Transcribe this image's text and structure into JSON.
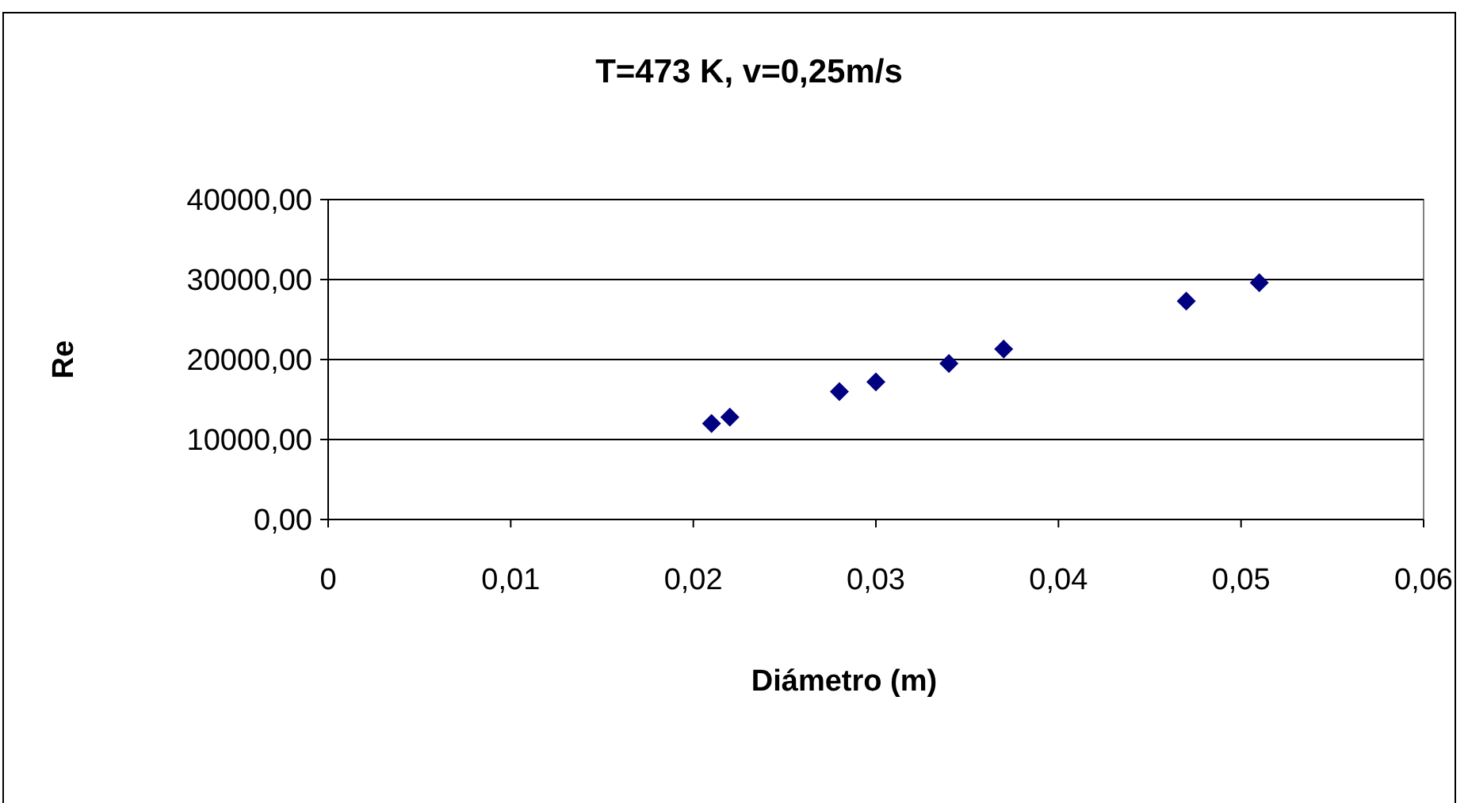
{
  "chart_data": {
    "type": "scatter",
    "title": "T=473 K, v=0,25m/s",
    "xlabel": "Diámetro (m)",
    "ylabel": "Re",
    "x": [
      0.021,
      0.022,
      0.028,
      0.03,
      0.034,
      0.037,
      0.047,
      0.051
    ],
    "series": [
      {
        "color": "#000080",
        "values": [
          12000,
          12800,
          16000,
          17200,
          19500,
          21300,
          27300,
          29600
        ]
      }
    ],
    "xlim": [
      0,
      0.06
    ],
    "xticks": [
      {
        "value": 0,
        "label": "0"
      },
      {
        "value": 0.01,
        "label": "0,01"
      },
      {
        "value": 0.02,
        "label": "0,02"
      },
      {
        "value": 0.03,
        "label": "0,03"
      },
      {
        "value": 0.04,
        "label": "0,04"
      },
      {
        "value": 0.05,
        "label": "0,05"
      },
      {
        "value": 0.06,
        "label": "0,06"
      }
    ],
    "ylim": [
      0,
      40000
    ],
    "yticks": [
      {
        "value": 0,
        "label": "0,00"
      },
      {
        "value": 10000,
        "label": "10000,00"
      },
      {
        "value": 20000,
        "label": "20000,00"
      },
      {
        "value": 30000,
        "label": "30000,00"
      },
      {
        "value": 40000,
        "label": "40000,00"
      }
    ],
    "grid": "y",
    "marker": "diamond",
    "legend": false
  }
}
